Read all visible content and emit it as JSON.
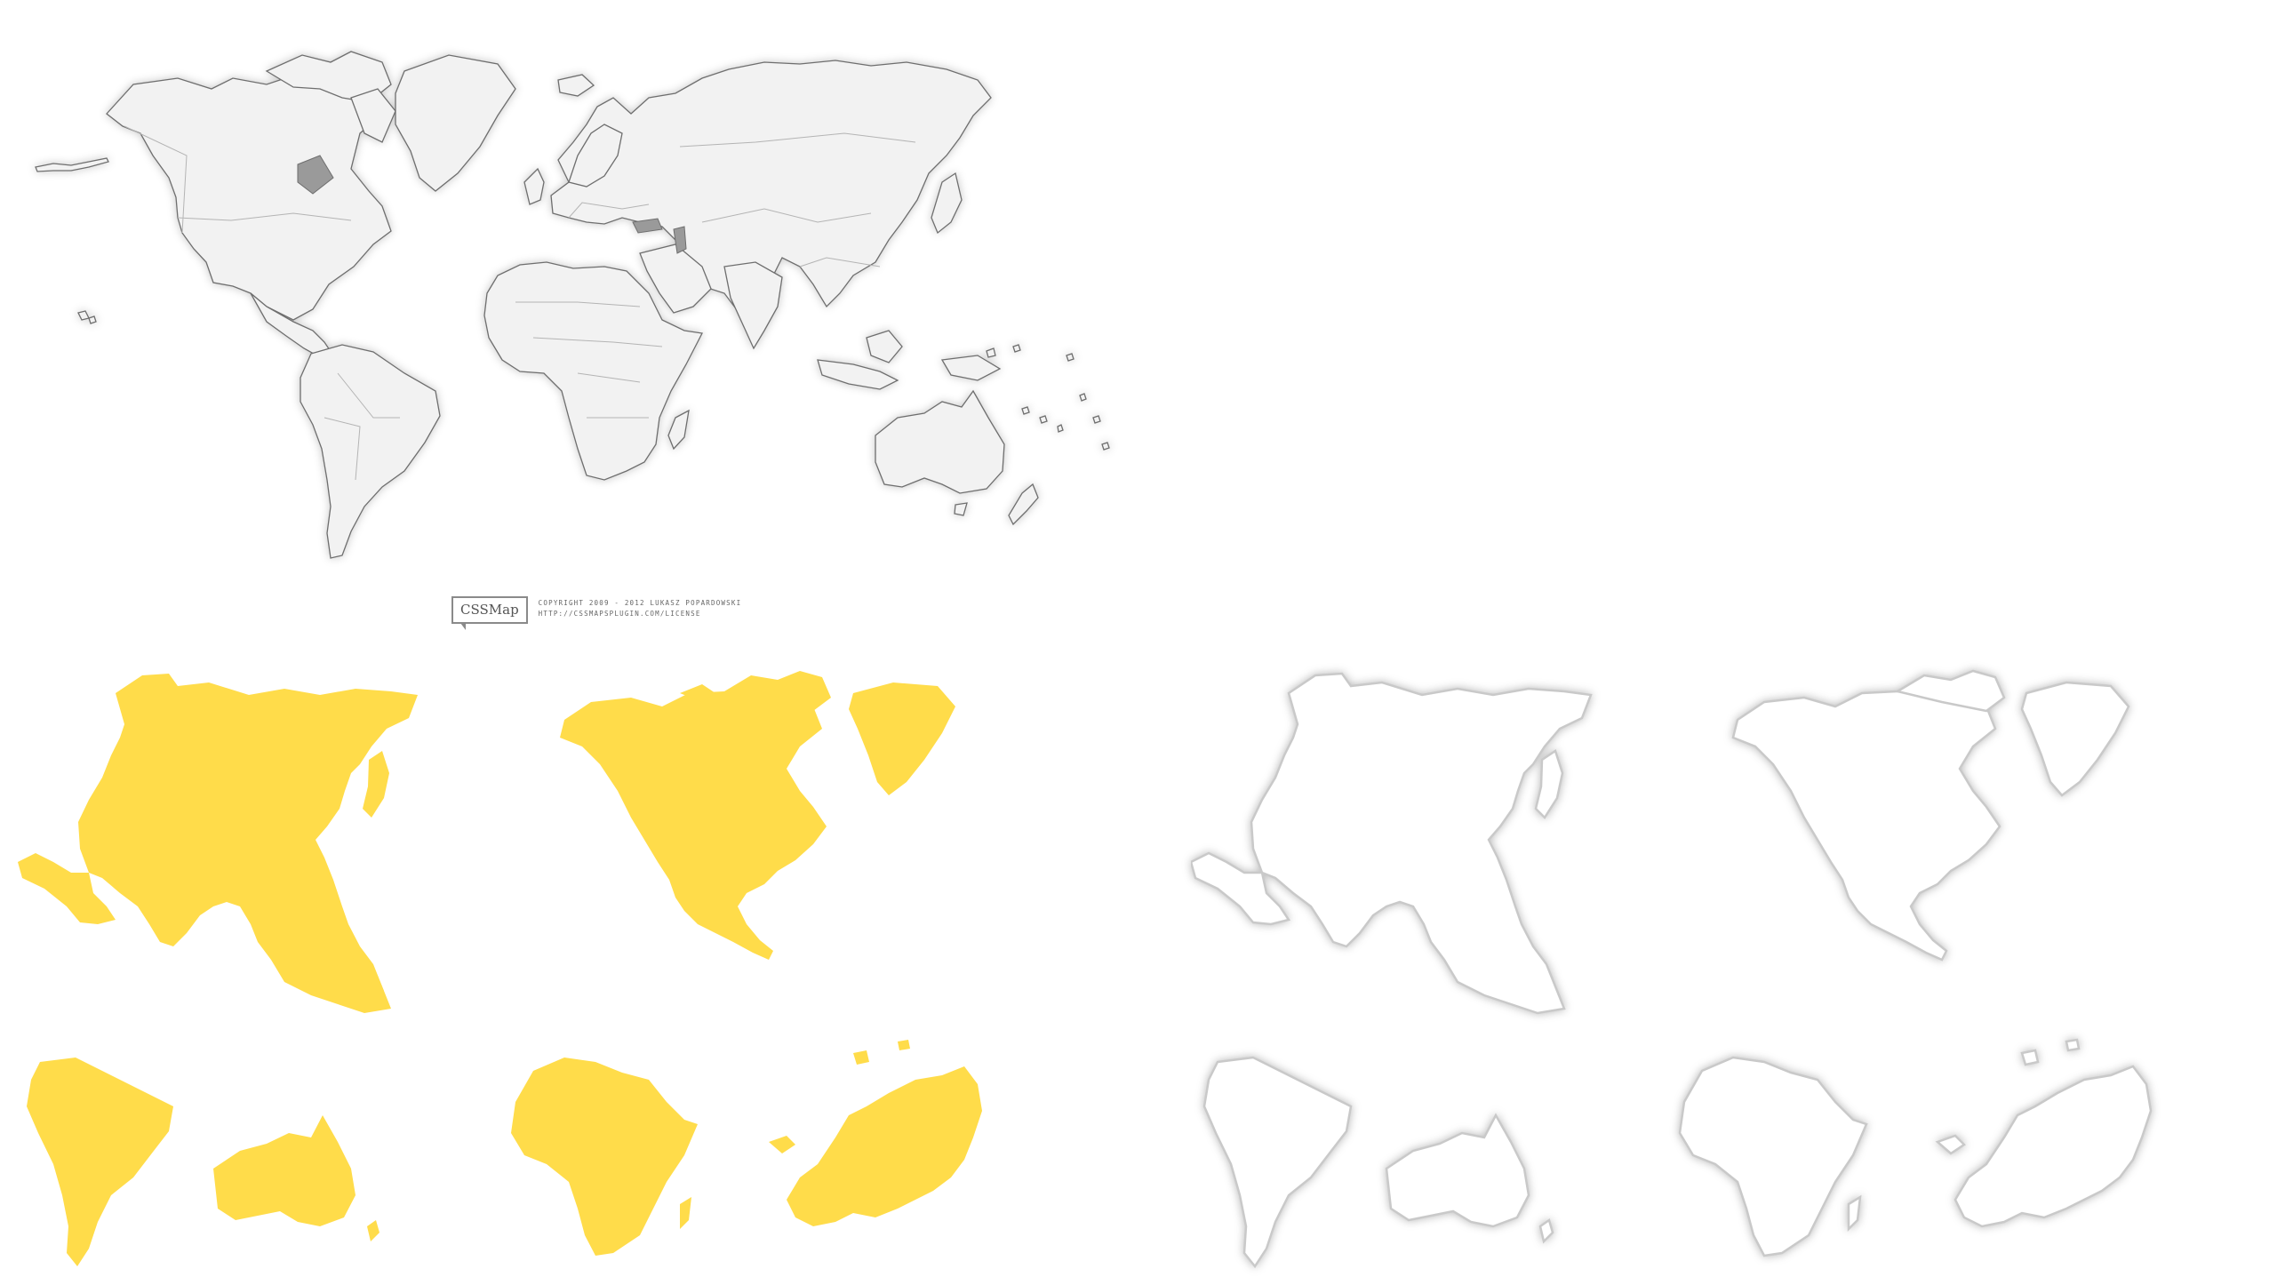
{
  "credit": {
    "logo": "CSSMap",
    "line1": "COPYRIGHT 2009 - 2012 LUKASZ POPARDOWSKI",
    "line2": "HTTP://CSSMAPSPLUGIN.COM/LICENSE"
  },
  "maps": {
    "world": "world-map-gray",
    "yellow": [
      "asia",
      "north-america",
      "south-america",
      "australia",
      "africa",
      "europe"
    ],
    "outline": [
      "asia",
      "north-america",
      "south-america",
      "australia",
      "africa",
      "europe"
    ]
  },
  "colors": {
    "yellow_fill": "#ffdc4a",
    "world_fill": "#f2f2f2",
    "world_stroke": "#6e6e6e",
    "outline_stroke": "#c9c9c9"
  }
}
